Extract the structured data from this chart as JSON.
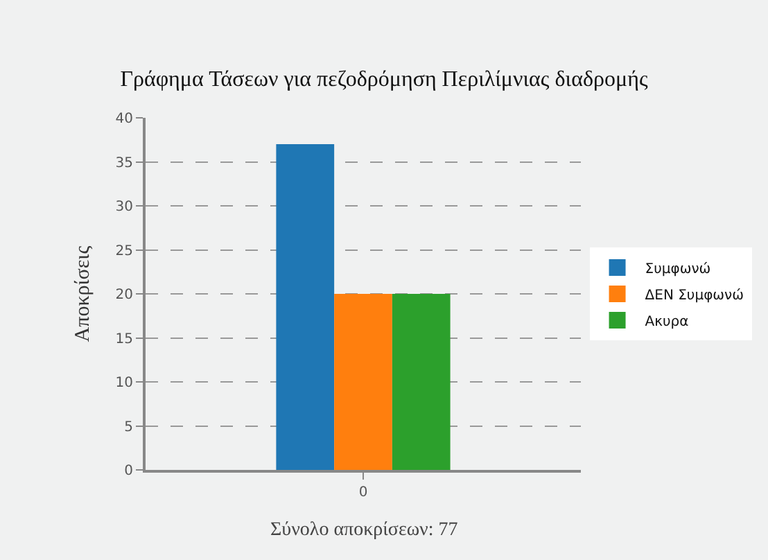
{
  "chart_data": {
    "type": "bar",
    "title": "Γράφημα Τάσεων για πεζοδρόμηση Περιλίμνιας διαδρομής",
    "ylabel": "Αποκρίσεις",
    "categories": [
      "0"
    ],
    "series": [
      {
        "name": "Συμφωνώ",
        "color": "#1f77b4",
        "values": [
          37
        ]
      },
      {
        "name": "ΔΕΝ Συμφωνώ",
        "color": "#ff7f0e",
        "values": [
          20
        ]
      },
      {
        "name": "Ακυρα",
        "color": "#2ca02c",
        "values": [
          20
        ]
      }
    ],
    "ylim": [
      0,
      40
    ],
    "yticks": [
      0,
      5,
      10,
      15,
      20,
      25,
      30,
      35,
      40
    ],
    "grid": "y",
    "legend": "right",
    "annotations": [
      "Σύνολο αποκρίσεων: 77"
    ]
  }
}
